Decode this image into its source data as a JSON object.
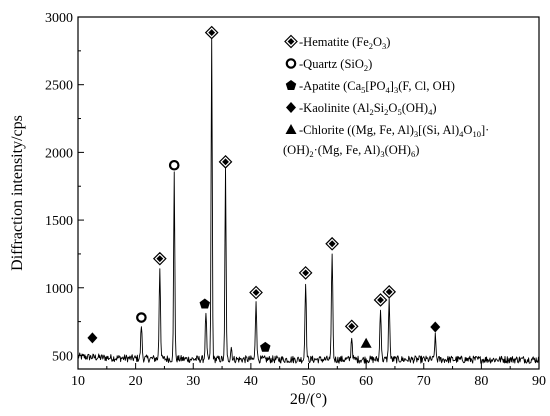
{
  "chart_data": {
    "type": "line",
    "title": "",
    "xlabel": "2θ/(°)",
    "ylabel": "Diffraction intensity/cps",
    "xlim": [
      10,
      90
    ],
    "ylim": [
      400,
      3000
    ],
    "x_ticks": [
      10,
      20,
      30,
      40,
      50,
      60,
      70,
      80,
      90
    ],
    "y_ticks": [
      500,
      1000,
      1500,
      2000,
      2500,
      3000
    ],
    "baseline": 470,
    "peaks": [
      {
        "x": 21.0,
        "y": 720
      },
      {
        "x": 24.2,
        "y": 1150
      },
      {
        "x": 26.7,
        "y": 1860
      },
      {
        "x": 32.2,
        "y": 820
      },
      {
        "x": 33.2,
        "y": 2850
      },
      {
        "x": 35.6,
        "y": 1880
      },
      {
        "x": 36.6,
        "y": 560
      },
      {
        "x": 40.9,
        "y": 910
      },
      {
        "x": 49.5,
        "y": 1050
      },
      {
        "x": 54.1,
        "y": 1270
      },
      {
        "x": 57.5,
        "y": 640
      },
      {
        "x": 62.5,
        "y": 860
      },
      {
        "x": 64.0,
        "y": 910
      },
      {
        "x": 72.0,
        "y": 640
      }
    ],
    "markers": [
      {
        "x": 12.5,
        "y": 630,
        "phase": "kaolinite"
      },
      {
        "x": 21.0,
        "y": 780,
        "phase": "quartz"
      },
      {
        "x": 24.2,
        "y": 1215,
        "phase": "hematite"
      },
      {
        "x": 26.7,
        "y": 1905,
        "phase": "quartz"
      },
      {
        "x": 32.0,
        "y": 880,
        "phase": "apatite"
      },
      {
        "x": 33.2,
        "y": 2885,
        "phase": "hematite"
      },
      {
        "x": 35.6,
        "y": 1930,
        "phase": "hematite"
      },
      {
        "x": 40.9,
        "y": 965,
        "phase": "hematite"
      },
      {
        "x": 42.5,
        "y": 560,
        "phase": "apatite"
      },
      {
        "x": 49.5,
        "y": 1110,
        "phase": "hematite"
      },
      {
        "x": 54.1,
        "y": 1325,
        "phase": "hematite"
      },
      {
        "x": 57.5,
        "y": 715,
        "phase": "hematite"
      },
      {
        "x": 60.0,
        "y": 590,
        "phase": "chlorite"
      },
      {
        "x": 62.5,
        "y": 910,
        "phase": "hematite"
      },
      {
        "x": 64.0,
        "y": 970,
        "phase": "hematite"
      },
      {
        "x": 72.0,
        "y": 710,
        "phase": "kaolinite"
      }
    ],
    "legend": [
      {
        "phase": "hematite",
        "icon": "diamond-in-diamond-icon",
        "name": "Hematite (Fe2O3)",
        "lines": [
          [
            [
              "-Hematite (Fe",
              ""
            ],
            [
              "2",
              "sub"
            ],
            [
              "O",
              ""
            ],
            [
              "3",
              "sub"
            ],
            [
              ")",
              ""
            ]
          ]
        ]
      },
      {
        "phase": "quartz",
        "icon": "open-circle-icon",
        "name": "Quartz (SiO2)",
        "lines": [
          [
            [
              "-Quartz (SiO",
              ""
            ],
            [
              "2",
              "sub"
            ],
            [
              ")",
              ""
            ]
          ]
        ]
      },
      {
        "phase": "apatite",
        "icon": "pentagon-icon",
        "name": "Apatite (Ca5[PO4]3(F, Cl, OH)",
        "lines": [
          [
            [
              "-Apatite (Ca",
              ""
            ],
            [
              "5",
              "sub"
            ],
            [
              "[PO",
              ""
            ],
            [
              "4",
              "sub"
            ],
            [
              "]",
              ""
            ],
            [
              "3",
              "sub"
            ],
            [
              "(F, Cl, OH)",
              ""
            ]
          ]
        ]
      },
      {
        "phase": "kaolinite",
        "icon": "filled-diamond-icon",
        "name": "Kaolinite (Al2Si2O5(OH)4)",
        "lines": [
          [
            [
              "-Kaolinite (Al",
              ""
            ],
            [
              "2",
              "sub"
            ],
            [
              "Si",
              ""
            ],
            [
              "2",
              "sub"
            ],
            [
              "O",
              ""
            ],
            [
              "5",
              "sub"
            ],
            [
              "(OH)",
              ""
            ],
            [
              "4",
              "sub"
            ],
            [
              ")",
              ""
            ]
          ]
        ]
      },
      {
        "phase": "chlorite",
        "icon": "triangle-icon",
        "name": "Chlorite ((Mg, Fe, Al)3[(Si, Al)4O10]·(OH)2·(Mg, Fe, Al)3(OH)6)",
        "lines": [
          [
            [
              "-Chlorite ((Mg, Fe, Al)",
              ""
            ],
            [
              "3",
              "sub"
            ],
            [
              "[(Si, Al)",
              ""
            ],
            [
              "4",
              "sub"
            ],
            [
              "O",
              ""
            ],
            [
              "10",
              "sub"
            ],
            [
              "]·",
              ""
            ]
          ],
          [
            [
              "(OH)",
              ""
            ],
            [
              "2",
              "sub"
            ],
            [
              "·(Mg, Fe, Al)",
              ""
            ],
            [
              "3",
              "sub"
            ],
            [
              "(OH)",
              ""
            ],
            [
              "6",
              "sub"
            ],
            [
              ")",
              ""
            ]
          ]
        ]
      }
    ],
    "colors": {
      "line": "#000000",
      "marker_stroke": "#000000",
      "marker_fill": "#000000",
      "background": "#ffffff"
    }
  }
}
